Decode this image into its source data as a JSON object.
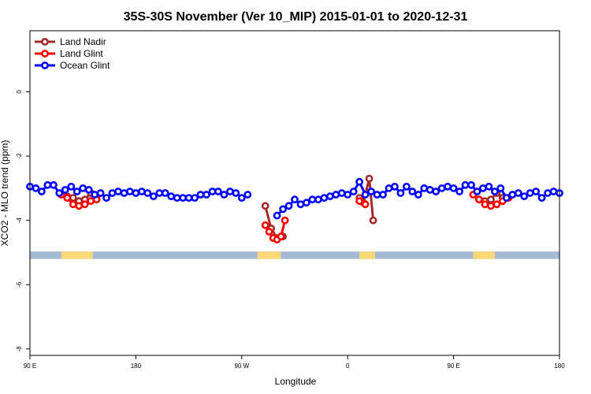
{
  "chart_data": {
    "type": "line",
    "title": "35S-30S November (Ver 10_MIP)   2015-01-01 to 2020-12-31",
    "xlabel": "Longitude",
    "ylabel": "XCO2 - MLO trend (ppm)",
    "xlim": [
      -90,
      180
    ],
    "ylim": [
      -8.2,
      1.9
    ],
    "x_tick_values": [
      -90,
      -36,
      18,
      72,
      126,
      180
    ],
    "x_tick_labels": [
      "90 E",
      "180",
      "90 W",
      "0",
      "90 E",
      "180"
    ],
    "y_tick_values": [
      0,
      -2,
      -4,
      -6,
      -8
    ],
    "y_tick_labels": [
      "0",
      "-2",
      "-4",
      "-6",
      "-8"
    ],
    "legend": [
      "Land Nadir",
      "Land Glint",
      "Ocean Glint"
    ],
    "legend_position": "top-left",
    "map_strip": {
      "y_range": [
        -5.2,
        -4.97
      ],
      "ocean_color": "#a5b8d6",
      "land_color": "#fad873",
      "land_segments": [
        [
          -74,
          -58
        ],
        [
          26,
          38
        ],
        [
          78,
          86
        ],
        [
          136,
          147
        ]
      ]
    },
    "series": [
      {
        "name": "Land Nadir",
        "color": "#a52a2a",
        "segments": [
          [
            [
              -74,
              -3.2
            ],
            [
              -71,
              -3.25
            ],
            [
              -68,
              -3.3
            ],
            [
              -65,
              -3.4
            ],
            [
              -62,
              -3.35
            ],
            [
              -59,
              -3.15
            ],
            [
              -56,
              -3.3
            ]
          ],
          [
            [
              30,
              -3.55
            ],
            [
              33,
              -4.25
            ],
            [
              36,
              -4.55
            ],
            [
              39,
              -4.5
            ]
          ],
          [
            [
              78,
              -3.3
            ],
            [
              80,
              -3.45
            ],
            [
              83,
              -2.7
            ],
            [
              85,
              -4.0
            ]
          ],
          [
            [
              136,
              -3.2
            ],
            [
              139,
              -3.35
            ],
            [
              142,
              -3.4
            ],
            [
              145,
              -3.35
            ],
            [
              148,
              -3.15
            ],
            [
              151,
              -3.3
            ]
          ]
        ]
      },
      {
        "name": "Land Glint",
        "color": "#ff0000",
        "segments": [
          [
            [
              -74,
              -3.2
            ],
            [
              -71,
              -3.3
            ],
            [
              -68,
              -3.5
            ],
            [
              -65,
              -3.55
            ],
            [
              -62,
              -3.5
            ],
            [
              -59,
              -3.4
            ],
            [
              -56,
              -3.35
            ]
          ],
          [
            [
              30,
              -4.15
            ],
            [
              32,
              -4.35
            ],
            [
              34,
              -4.55
            ],
            [
              36,
              -4.6
            ],
            [
              38,
              -4.5
            ],
            [
              40,
              -4.0
            ]
          ],
          [
            [
              78,
              -3.4
            ],
            [
              81,
              -3.5
            ]
          ],
          [
            [
              136,
              -3.2
            ],
            [
              139,
              -3.35
            ],
            [
              142,
              -3.5
            ],
            [
              145,
              -3.55
            ],
            [
              148,
              -3.5
            ],
            [
              151,
              -3.4
            ],
            [
              154,
              -3.3
            ]
          ]
        ]
      },
      {
        "name": "Ocean Glint",
        "color": "#0000ff",
        "segments": [
          [
            [
              -90,
              -2.95
            ],
            [
              -87,
              -3.0
            ],
            [
              -84,
              -3.1
            ],
            [
              -81,
              -2.9
            ],
            [
              -78,
              -2.9
            ],
            [
              -75,
              -3.15
            ],
            [
              -72,
              -3.05
            ],
            [
              -69,
              -2.95
            ],
            [
              -66,
              -3.1
            ],
            [
              -63,
              -3.0
            ],
            [
              -60,
              -3.05
            ],
            [
              -57,
              -3.2
            ],
            [
              -54,
              -3.15
            ],
            [
              -51,
              -3.3
            ],
            [
              -48,
              -3.15
            ],
            [
              -45,
              -3.1
            ],
            [
              -42,
              -3.15
            ],
            [
              -39,
              -3.1
            ],
            [
              -36,
              -3.15
            ],
            [
              -33,
              -3.1
            ],
            [
              -30,
              -3.15
            ],
            [
              -27,
              -3.25
            ],
            [
              -24,
              -3.15
            ],
            [
              -21,
              -3.15
            ],
            [
              -18,
              -3.25
            ],
            [
              -15,
              -3.3
            ],
            [
              -12,
              -3.3
            ],
            [
              -9,
              -3.3
            ],
            [
              -6,
              -3.3
            ],
            [
              -3,
              -3.2
            ],
            [
              0,
              -3.2
            ],
            [
              3,
              -3.1
            ],
            [
              6,
              -3.1
            ],
            [
              9,
              -3.2
            ],
            [
              12,
              -3.1
            ],
            [
              15,
              -3.15
            ],
            [
              18,
              -3.3
            ],
            [
              21,
              -3.2
            ]
          ],
          [
            [
              36,
              -3.85
            ],
            [
              39,
              -3.65
            ],
            [
              42,
              -3.55
            ],
            [
              45,
              -3.35
            ],
            [
              48,
              -3.5
            ],
            [
              51,
              -3.45
            ],
            [
              54,
              -3.35
            ],
            [
              57,
              -3.35
            ],
            [
              60,
              -3.3
            ],
            [
              63,
              -3.25
            ],
            [
              66,
              -3.2
            ],
            [
              69,
              -3.15
            ],
            [
              72,
              -3.2
            ],
            [
              75,
              -3.1
            ],
            [
              78,
              -2.8
            ],
            [
              81,
              -3.2
            ],
            [
              84,
              -3.1
            ],
            [
              87,
              -3.2
            ],
            [
              90,
              -3.2
            ],
            [
              93,
              -3.0
            ],
            [
              96,
              -2.95
            ],
            [
              99,
              -3.15
            ],
            [
              102,
              -2.95
            ],
            [
              105,
              -3.1
            ],
            [
              108,
              -3.2
            ],
            [
              111,
              -3.0
            ],
            [
              114,
              -3.05
            ],
            [
              117,
              -3.1
            ],
            [
              120,
              -3.0
            ],
            [
              123,
              -2.95
            ],
            [
              126,
              -3.0
            ],
            [
              129,
              -3.1
            ],
            [
              132,
              -2.9
            ],
            [
              135,
              -2.9
            ],
            [
              138,
              -3.1
            ],
            [
              141,
              -3.0
            ],
            [
              144,
              -2.95
            ],
            [
              147,
              -3.1
            ],
            [
              150,
              -3.0
            ],
            [
              153,
              -3.3
            ],
            [
              156,
              -3.2
            ],
            [
              159,
              -3.15
            ],
            [
              162,
              -3.25
            ],
            [
              165,
              -3.15
            ],
            [
              168,
              -3.1
            ],
            [
              171,
              -3.3
            ],
            [
              174,
              -3.15
            ],
            [
              177,
              -3.1
            ],
            [
              180,
              -3.15
            ]
          ]
        ]
      }
    ]
  }
}
